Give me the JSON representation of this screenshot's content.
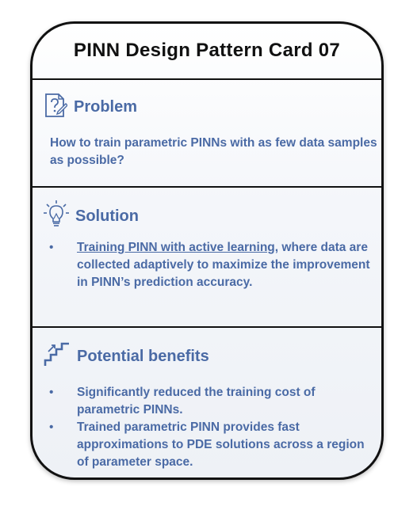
{
  "card": {
    "title": "PINN Design Pattern Card 07"
  },
  "problem": {
    "heading": "Problem",
    "icon": "question-document-icon",
    "text": "How to train parametric PINNs with as few data samples as possible?"
  },
  "solution": {
    "heading": "Solution",
    "icon": "lightbulb-icon",
    "bullet_link": "Training PINN with active learning",
    "bullet_rest": ", where data are collected adaptively to maximize the improvement in PINN’s prediction accuracy."
  },
  "benefits": {
    "heading": "Potential benefits",
    "icon": "rising-stairs-icon",
    "items": [
      "Significantly reduced the training cost of parametric PINNs.",
      "Trained parametric PINN provides fast approximations to PDE solutions across a region of parameter space."
    ]
  },
  "colors": {
    "accent": "#4a6aa5",
    "border": "#111111"
  }
}
